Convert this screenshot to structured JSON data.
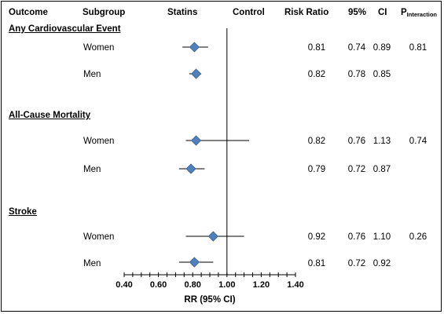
{
  "chart_data": {
    "type": "forest",
    "title": "",
    "xlabel": "RR (95% CI)",
    "axis": {
      "min": 0.4,
      "max": 1.4,
      "ticks": [
        "0.40",
        "0.60",
        "0.80",
        "1.00",
        "1.20",
        "1.40"
      ],
      "reference": 1.0
    },
    "headers": {
      "outcome": "Outcome",
      "subgroup": "Subgroup",
      "statins": "Statins",
      "control": "Control",
      "risk_ratio": "Risk Ratio",
      "ci_low": "95%",
      "ci_high": "CI",
      "p_main": "P",
      "p_sub": "Interaction"
    },
    "groups": [
      {
        "name": "Any Cardiovascular Event",
        "p_interaction": "0.81",
        "rows": [
          {
            "subgroup": "Women",
            "rr": 0.81,
            "low": 0.74,
            "high": 0.89,
            "rr_txt": "0.81",
            "low_txt": "0.74",
            "high_txt": "0.89"
          },
          {
            "subgroup": "Men",
            "rr": 0.82,
            "low": 0.78,
            "high": 0.85,
            "rr_txt": "0.82",
            "low_txt": "0.78",
            "high_txt": "0.85"
          }
        ]
      },
      {
        "name": "All-Cause Mortality",
        "p_interaction": "0.74",
        "rows": [
          {
            "subgroup": "Women",
            "rr": 0.82,
            "low": 0.76,
            "high": 1.13,
            "rr_txt": "0.82",
            "low_txt": "0.76",
            "high_txt": "1.13"
          },
          {
            "subgroup": "Men",
            "rr": 0.79,
            "low": 0.72,
            "high": 0.87,
            "rr_txt": "0.79",
            "low_txt": "0.72",
            "high_txt": "0.87"
          }
        ]
      },
      {
        "name": "Stroke",
        "p_interaction": "0.26",
        "rows": [
          {
            "subgroup": "Women",
            "rr": 0.92,
            "low": 0.76,
            "high": 1.1,
            "rr_txt": "0.92",
            "low_txt": "0.76",
            "high_txt": "1.10"
          },
          {
            "subgroup": "Men",
            "rr": 0.81,
            "low": 0.72,
            "high": 0.92,
            "rr_txt": "0.81",
            "low_txt": "0.72",
            "high_txt": "0.92"
          }
        ]
      }
    ],
    "colors": {
      "marker": "#4F81BD",
      "marker_edge": "#385D8A",
      "line": "#000000"
    }
  }
}
